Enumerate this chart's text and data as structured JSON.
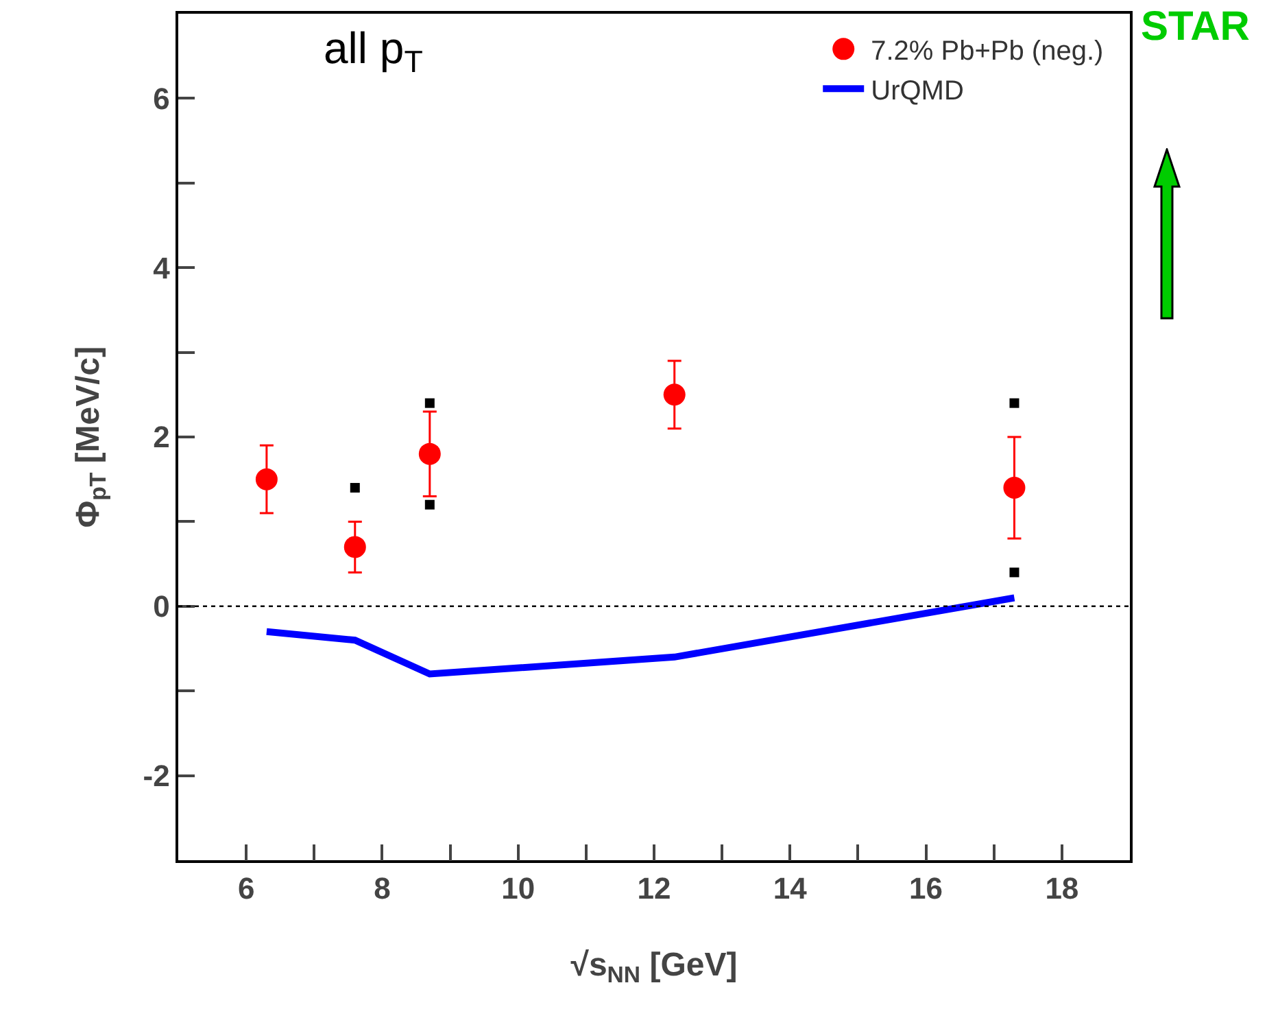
{
  "chart_data": {
    "type": "scatter",
    "xlabel": "√s$_{NN}$ [GeV]",
    "ylabel": "Φ$_{pT}$ [MeV/c]",
    "annotations": [
      "all p$_{T}$",
      "STAR"
    ],
    "xlim": [
      5,
      19
    ],
    "xticks": [
      {
        "value": 5,
        "label": null
      },
      6,
      {
        "value": 7,
        "label": null
      },
      8,
      {
        "value": 9,
        "label": null
      },
      10,
      {
        "value": 11,
        "label": null
      },
      12,
      {
        "value": 13,
        "label": null
      },
      14,
      {
        "value": 15,
        "label": null
      },
      16,
      {
        "value": 17,
        "label": null
      },
      18,
      {
        "value": 19,
        "label": null
      }
    ],
    "ylim": [
      -3,
      7
    ],
    "yticks": [
      {
        "value": -3,
        "label": null
      },
      -2,
      {
        "value": -1,
        "label": null
      },
      0,
      {
        "value": 1,
        "label": null
      },
      2,
      {
        "value": 3,
        "label": null
      },
      4,
      {
        "value": 5,
        "label": null
      },
      6,
      {
        "value": 7,
        "label": null
      }
    ],
    "grid": false,
    "legend": "top right",
    "series": [
      {
        "name": "7.2% Pb+Pb (neg.)",
        "marker": "circle",
        "color": "#ff0000",
        "x": [
          6.3,
          7.6,
          8.7,
          12.3,
          17.3
        ],
        "values": [
          1.5,
          0.7,
          1.8,
          2.5,
          1.4
        ],
        "errors": [
          0.4,
          0.3,
          0.5,
          0.4,
          0.6
        ]
      },
      {
        "type": "scatter",
        "marker": "square",
        "color": "#000000",
        "x": [
          7.6,
          8.7,
          8.7,
          17.3,
          17.3
        ],
        "values": [
          1.4,
          2.4,
          1.2,
          2.4,
          0.4
        ]
      },
      {
        "name": "UrQMD",
        "type": "line",
        "marker": "none",
        "color": "#0000ff",
        "x": [
          6.3,
          7.6,
          8.7,
          12.3,
          17.3
        ],
        "values": [
          -0.3,
          -0.4,
          -0.8,
          -0.6,
          0.1
        ]
      }
    ],
    "ref_lines": [
      {
        "axis": "y",
        "value": 0,
        "color": "#000000",
        "line_style": "dotted"
      }
    ]
  }
}
